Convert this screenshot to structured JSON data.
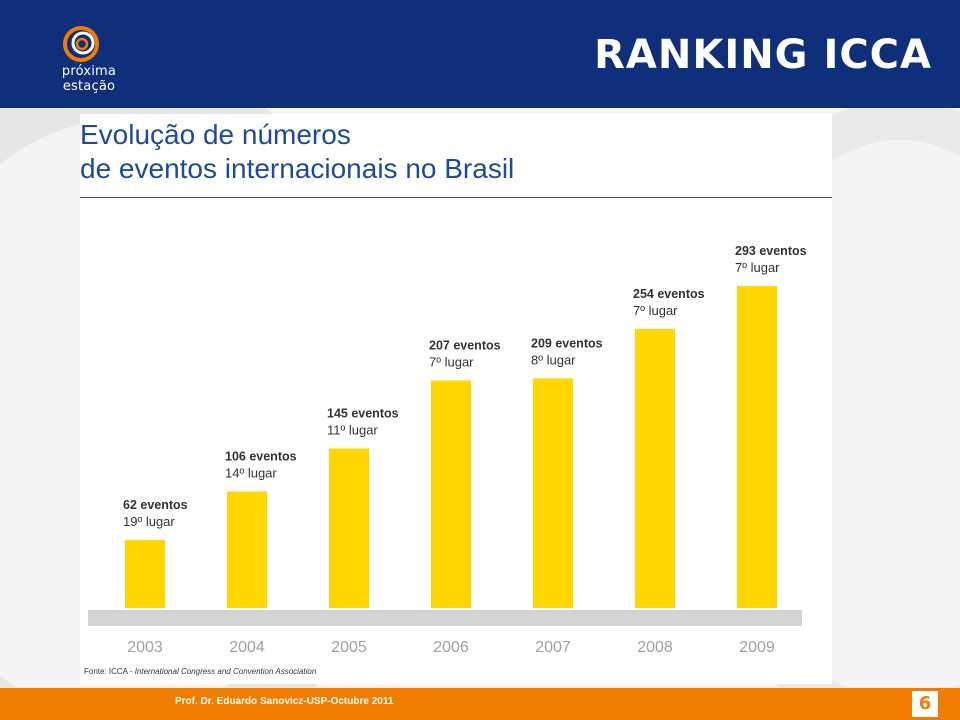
{
  "header": {
    "logo_text": "próxima estação",
    "title": "RANKING ICCA"
  },
  "chart_panel": {
    "title_line1": "Evolução de números",
    "title_line2": "de eventos internacionais no Brasil",
    "source_prefix": "Fonte: ICCA - ",
    "source_name": "International Congress and Convention Association"
  },
  "chart_data": {
    "type": "bar",
    "categories": [
      "2003",
      "2004",
      "2005",
      "2006",
      "2007",
      "2008",
      "2009"
    ],
    "values": [
      62,
      106,
      145,
      207,
      209,
      254,
      293
    ],
    "value_labels": [
      "62 eventos",
      "106 eventos",
      "145 eventos",
      "207 eventos",
      "209 eventos",
      "254 eventos",
      "293 eventos"
    ],
    "rank_labels": [
      "19º lugar",
      "14º lugar",
      "11º lugar",
      "7º lugar",
      "8º lugar",
      "7º lugar",
      "7º lugar"
    ],
    "title": "Evolução de números de eventos internacionais no Brasil",
    "xlabel": "",
    "ylabel": "",
    "ylim": [
      0,
      293
    ],
    "grid": false,
    "bar_color": "#ffd600",
    "axis_band_color": "#d4d4d4",
    "tick_color": "#a0a0a0"
  },
  "footer": {
    "text": "Prof. Dr. Eduardo Sanovicz-USP-Octubre 2011",
    "page_number": "6"
  },
  "colors": {
    "header_bg": "#0f2f7a",
    "footer_bg": "#f07c00",
    "chart_title": "#1f4a9a"
  }
}
